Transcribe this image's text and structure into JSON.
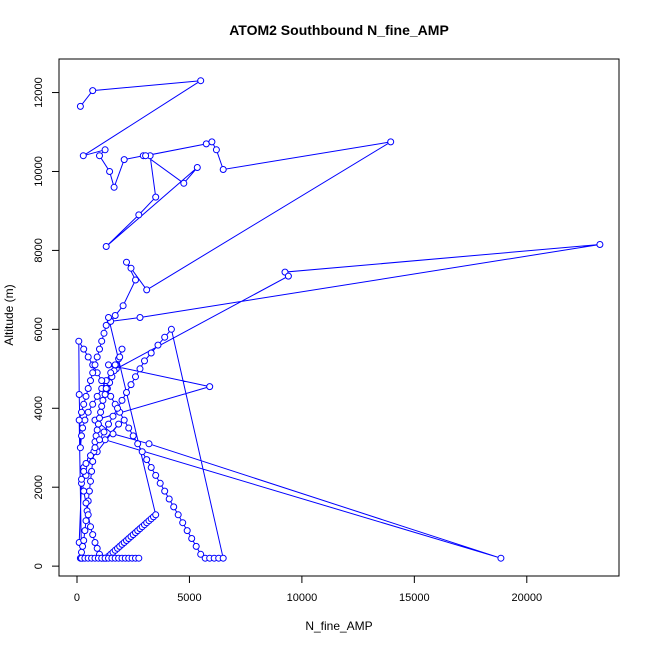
{
  "chart_data": {
    "type": "line",
    "title": "ATOM2 Southbound N_fine_AMP",
    "xlabel": "N_fine_AMP",
    "ylabel": "Altitude (m)",
    "xlim": [
      -800,
      24100
    ],
    "ylim": [
      -250,
      12850
    ],
    "xticks": [
      0,
      5000,
      10000,
      15000,
      20000
    ],
    "xtick_labels": [
      "0",
      "5000",
      "10000",
      "15000",
      "20000"
    ],
    "yticks": [
      0,
      2000,
      4000,
      6000,
      8000,
      10000,
      12000
    ],
    "ytick_labels": [
      "0",
      "2000",
      "4000",
      "6000",
      "8000",
      "10000",
      "12000"
    ],
    "grid": false,
    "legend": "none",
    "series": [
      {
        "color": "#0000ff",
        "marker": "open-circle",
        "x": [
          150,
          700,
          5500,
          280,
          1250,
          1000,
          1450,
          1650,
          2100,
          2950,
          3250,
          3500,
          2750,
          1300,
          5350,
          4750,
          3050,
          5750,
          6000,
          6200,
          6500,
          13950,
          3100,
          2400,
          2200,
          2600,
          2050,
          1700,
          1500,
          2800,
          23250,
          9250,
          9400,
          1750,
          1400,
          5900,
          800,
          1600,
          3200,
          18850,
          1250,
          1850,
          900,
          600,
          300,
          400,
          200,
          100,
          250,
          150,
          200,
          250,
          300,
          350,
          400,
          450,
          500,
          550,
          600,
          650,
          700,
          750,
          800,
          850,
          900,
          950,
          1000,
          1050,
          1100,
          1150,
          1250,
          1350,
          1450,
          1550,
          1650,
          1750,
          1850,
          2000,
          1900,
          1700,
          1500,
          1300,
          1100,
          900,
          700,
          500,
          350,
          250,
          200,
          150,
          100,
          80,
          300,
          500,
          700,
          900,
          1100,
          1300,
          1500,
          1700,
          1900,
          2100,
          2300,
          2500,
          2700,
          2900,
          3100,
          3300,
          3500,
          3700,
          3900,
          4100,
          4300,
          4500,
          4700,
          4900,
          5100,
          5300,
          5500,
          5700,
          5900,
          6100,
          6300,
          6500,
          4200,
          3900,
          3600,
          3300,
          3000,
          2800,
          2600,
          2400,
          2200,
          2000,
          1800,
          1600,
          1400,
          1200,
          1000,
          800,
          600,
          400,
          300,
          200,
          300,
          400,
          500,
          600,
          700,
          800,
          900,
          1000,
          1100,
          1200,
          1300,
          1400,
          1500,
          1600,
          1700,
          1800,
          1900,
          2000,
          2100,
          2200,
          2300,
          2400,
          2500,
          2600,
          2700,
          2800,
          2900,
          3000,
          3100,
          3200,
          3300,
          3400,
          3500,
          1400,
          1300,
          1200,
          1100,
          1000,
          900,
          800,
          700,
          600,
          500,
          400,
          300,
          200,
          100,
          200,
          350,
          500,
          650,
          800,
          950,
          1100,
          1250,
          1400,
          1550,
          1700,
          1850,
          2000,
          2150,
          2300,
          2450,
          2600,
          2750
        ],
        "y": [
          11650,
          12050,
          12300,
          10400,
          10550,
          10400,
          10000,
          9600,
          10300,
          10400,
          10400,
          9350,
          8900,
          8100,
          10100,
          9700,
          10400,
          10700,
          10750,
          10550,
          10050,
          10750,
          7000,
          7550,
          7700,
          7250,
          6600,
          6350,
          6200,
          6300,
          8150,
          7450,
          7350,
          5000,
          5100,
          4550,
          3700,
          3350,
          3100,
          200,
          3200,
          3600,
          2900,
          2700,
          2500,
          2300,
          2100,
          600,
          200,
          200,
          350,
          500,
          650,
          900,
          1150,
          1400,
          1650,
          1900,
          2150,
          2400,
          2650,
          2900,
          3150,
          3300,
          3450,
          3600,
          3750,
          3900,
          4050,
          4200,
          4350,
          4500,
          4650,
          4800,
          4950,
          5100,
          5250,
          5500,
          5300,
          5100,
          4900,
          4700,
          4500,
          4300,
          4100,
          3900,
          3700,
          3500,
          3300,
          3000,
          4350,
          5700,
          5500,
          5300,
          5100,
          4900,
          4700,
          4500,
          4300,
          4100,
          3900,
          3700,
          3500,
          3300,
          3100,
          2900,
          2700,
          2500,
          2300,
          2100,
          1900,
          1700,
          1500,
          1300,
          1100,
          900,
          700,
          500,
          300,
          200,
          200,
          200,
          200,
          200,
          6000,
          5800,
          5600,
          5400,
          5200,
          5000,
          4800,
          4600,
          4400,
          4200,
          4000,
          3800,
          3600,
          3400,
          3200,
          3000,
          2800,
          2600,
          2400,
          2200,
          1900,
          1600,
          1300,
          1000,
          800,
          600,
          450,
          300,
          200,
          200,
          200,
          250,
          300,
          350,
          400,
          450,
          500,
          550,
          600,
          650,
          700,
          750,
          800,
          850,
          900,
          950,
          1000,
          1050,
          1100,
          1150,
          1200,
          1250,
          1300,
          6300,
          6100,
          5900,
          5700,
          5500,
          5300,
          5100,
          4900,
          4700,
          4500,
          4300,
          4100,
          3900,
          3700,
          200,
          200,
          200,
          200,
          200,
          200,
          200,
          200,
          200,
          200,
          200,
          200,
          200,
          200,
          200,
          200,
          200,
          200
        ]
      }
    ]
  }
}
